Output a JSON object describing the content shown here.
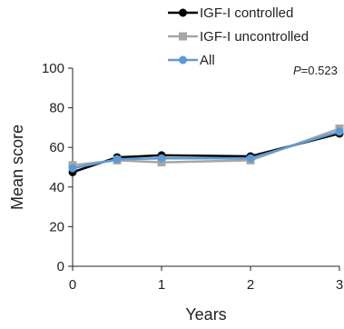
{
  "chart_data": {
    "type": "line",
    "xlabel": "Years",
    "ylabel": "Mean score",
    "xlim": [
      0,
      3
    ],
    "ylim": [
      0,
      100
    ],
    "x_ticks": [
      "0",
      "1",
      "2",
      "3"
    ],
    "y_ticks": [
      "0",
      "20",
      "40",
      "60",
      "80",
      "100"
    ],
    "grid": false,
    "legend_position": "top-right",
    "annotation": {
      "p_symbol": "P",
      "p_value": "=0.523"
    },
    "series": [
      {
        "name": "IGF-I controlled",
        "color": "#000000",
        "marker": "circle",
        "x": [
          0,
          0.5,
          1,
          2,
          3
        ],
        "y": [
          47.5,
          55,
          56,
          55.5,
          67
        ]
      },
      {
        "name": "IGF-I uncontrolled",
        "color": "#a6a6a6",
        "marker": "square",
        "x": [
          0,
          0.5,
          1,
          2,
          3
        ],
        "y": [
          51,
          53.5,
          52.5,
          53.5,
          69.5
        ]
      },
      {
        "name": "All",
        "color": "#5b9bd5",
        "marker": "circle",
        "x": [
          0,
          0.5,
          1,
          2,
          3
        ],
        "y": [
          49.5,
          54,
          54.5,
          54.5,
          68
        ]
      }
    ]
  }
}
